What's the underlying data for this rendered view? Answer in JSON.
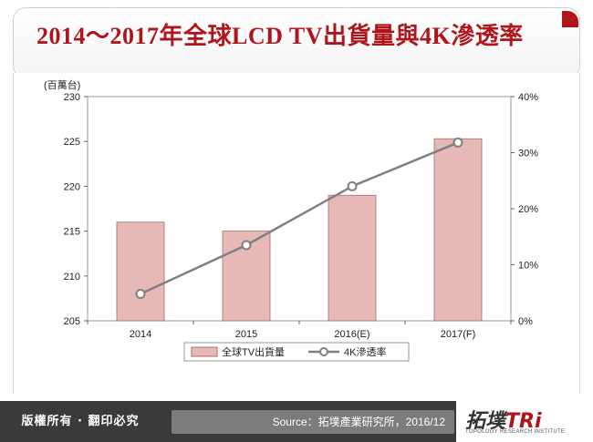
{
  "header": {
    "title": "2014～2017年全球LCD TV出貨量與4K滲透率"
  },
  "colors": {
    "bar_fill": "#e6b8b8",
    "bar_stroke": "#a86c6c",
    "line": "#808080",
    "title": "#b0151c"
  },
  "chart_data": {
    "type": "bar",
    "title": "2014～2017年全球LCD TV出貨量與4K滲透率",
    "categories": [
      "2014",
      "2015",
      "2016(E)",
      "2017(F)"
    ],
    "left_axis": {
      "unit_label": "(百萬台)",
      "ylim": [
        205,
        230
      ],
      "ticks": [
        "205",
        "210",
        "215",
        "220",
        "225",
        "230"
      ]
    },
    "right_axis": {
      "ylim": [
        0,
        40
      ],
      "ticks": [
        "0%",
        "10%",
        "20%",
        "30%",
        "40%"
      ]
    },
    "series": [
      {
        "name": "全球TV出貨量",
        "type": "bar",
        "axis": "left",
        "values": [
          216,
          215,
          219,
          225.3
        ]
      },
      {
        "name": "4K滲透率",
        "type": "line",
        "axis": "right",
        "values": [
          4.8,
          13.5,
          24,
          31.8
        ]
      }
    ],
    "legend_position": "bottom",
    "grid": false
  },
  "footer": {
    "rights": "版權所有 · 翻印必究",
    "source": "Source：拓墣產業研究所，2016/12",
    "logo_text": "拓墣",
    "logo_tri": "TRi",
    "logo_sub": "TOPOLOGY RESEARCH INSTITUTE"
  }
}
